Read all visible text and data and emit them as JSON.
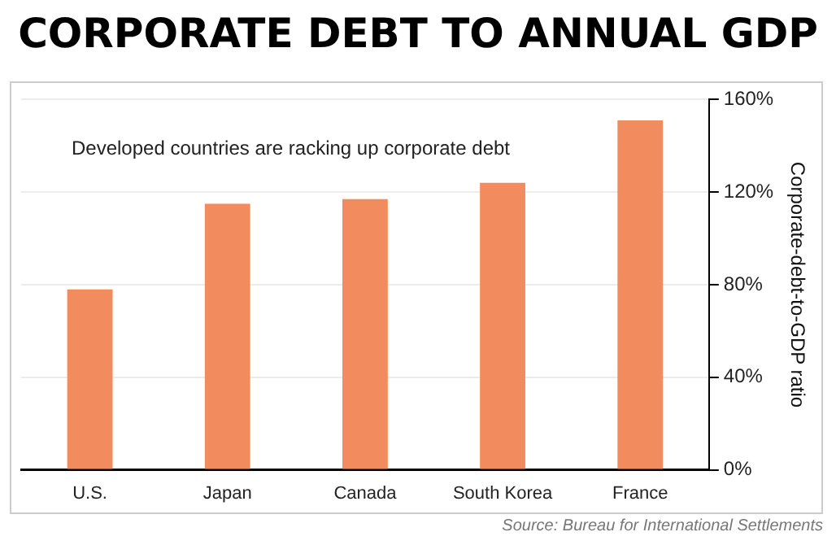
{
  "chart_data": {
    "type": "bar",
    "title": "CORPORATE DEBT TO ANNUAL GDP",
    "categories": [
      "U.S.",
      "Japan",
      "Canada",
      "South Korea",
      "France"
    ],
    "values": [
      78,
      115,
      117,
      124,
      151
    ],
    "color": "#f28b5e",
    "ylabel": "Corporate-debt-to-GDP ratio",
    "ylim": [
      0,
      160
    ],
    "yticks": [
      {
        "value": 0,
        "label": "0%"
      },
      {
        "value": 40,
        "label": "40%"
      },
      {
        "value": 80,
        "label": "80%"
      },
      {
        "value": 120,
        "label": "120%"
      },
      {
        "value": 160,
        "label": "160%"
      }
    ],
    "grid": "y",
    "legend": false,
    "annotations": [
      "Developed countries are racking up corporate debt",
      "Source: Bureau for International Settlements"
    ]
  }
}
